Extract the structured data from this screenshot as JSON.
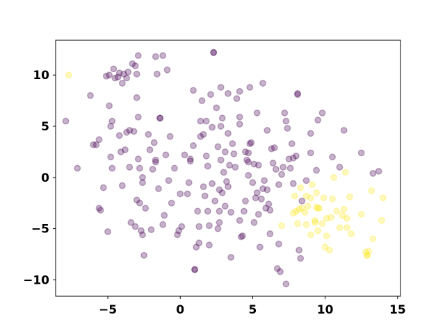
{
  "chart_data": {
    "type": "scatter",
    "title": "",
    "xlabel": "",
    "ylabel": "",
    "xlim": [
      -8.6,
      15.2
    ],
    "ylim": [
      -11.6,
      13.4
    ],
    "xticks": [
      -5,
      0,
      5,
      10,
      15
    ],
    "yticks": [
      -10,
      -5,
      0,
      5,
      10
    ],
    "xtick_labels": [
      "−5",
      "0",
      "5",
      "10",
      "15"
    ],
    "ytick_labels": [
      "−10",
      "−5",
      "0",
      "5",
      "10"
    ],
    "grid": false,
    "legend": "none",
    "marker_alpha": 0.3,
    "series": [
      {
        "color": "#440154",
        "points": [
          [
            -7.9,
            5.5
          ],
          [
            -7.1,
            0.9
          ],
          [
            -6.2,
            8.0
          ],
          [
            -6.0,
            3.2
          ],
          [
            -5.8,
            3.2
          ],
          [
            -5.6,
            3.7
          ],
          [
            -5.6,
            -3.0
          ],
          [
            -5.5,
            -3.2
          ],
          [
            -5.3,
            -1.0
          ],
          [
            -5.1,
            9.9
          ],
          [
            -5.0,
            -5.3
          ],
          [
            -4.9,
            10.0
          ],
          [
            -4.9,
            7.0
          ],
          [
            -4.8,
            5.0
          ],
          [
            -4.8,
            2.0
          ],
          [
            -4.7,
            5.5
          ],
          [
            -4.7,
            0.9
          ],
          [
            -4.6,
            10.6
          ],
          [
            -4.5,
            9.7
          ],
          [
            -4.3,
            9.8
          ],
          [
            -4.2,
            10.2
          ],
          [
            -4.2,
            4.1
          ],
          [
            -4.1,
            2.5
          ],
          [
            -4.0,
            -0.8
          ],
          [
            -4.0,
            9.2
          ],
          [
            -3.9,
            10.1
          ],
          [
            -3.8,
            2.7
          ],
          [
            -3.7,
            9.7
          ],
          [
            -3.7,
            4.4
          ],
          [
            -3.6,
            10.3
          ],
          [
            -3.5,
            4.6
          ],
          [
            -3.5,
            1.0
          ],
          [
            -3.4,
            -4.4
          ],
          [
            -3.3,
            11.1
          ],
          [
            -3.2,
            4.5
          ],
          [
            -3.1,
            10.9
          ],
          [
            -3.1,
            -4.8
          ],
          [
            -3.0,
            7.8
          ],
          [
            -3.0,
            -2.2
          ],
          [
            -3.0,
            10.1
          ],
          [
            -2.9,
            11.9
          ],
          [
            -2.9,
            5.9
          ],
          [
            -2.9,
            1.8
          ],
          [
            -2.8,
            -2.5
          ],
          [
            -2.8,
            0.9
          ],
          [
            -2.7,
            -5.2
          ],
          [
            -2.6,
            -5.6
          ],
          [
            -2.6,
            -0.5
          ],
          [
            -2.6,
            0.0
          ],
          [
            -2.5,
            -7.6
          ],
          [
            -2.4,
            -3.0
          ],
          [
            -2.2,
            4.2
          ],
          [
            -2.1,
            2.7
          ],
          [
            -2.0,
            -5.1
          ],
          [
            -1.9,
            0.8
          ],
          [
            -1.8,
            3.4
          ],
          [
            -1.7,
            1.7
          ],
          [
            -1.7,
            11.8
          ],
          [
            -1.7,
            1.5
          ],
          [
            -1.6,
            10.1
          ],
          [
            -1.5,
            -1.1
          ],
          [
            -1.4,
            5.8
          ],
          [
            -1.4,
            5.8
          ],
          [
            -1.2,
            -4.6
          ],
          [
            -1.2,
            11.9
          ],
          [
            -1.1,
            -3.7
          ],
          [
            -1.0,
            2.2
          ],
          [
            -0.9,
            10.5
          ],
          [
            -0.8,
            -0.3
          ],
          [
            -0.7,
            4.0
          ],
          [
            -0.6,
            -2.5
          ],
          [
            -0.4,
            0.9
          ],
          [
            -0.2,
            -5.6
          ],
          [
            -0.1,
            -5.2
          ],
          [
            0.0,
            -1.6
          ],
          [
            0.1,
            -4.8
          ],
          [
            0.3,
            2.2
          ],
          [
            0.5,
            -1.6
          ],
          [
            0.6,
            -0.5
          ],
          [
            0.7,
            1.8
          ],
          [
            0.7,
            1.6
          ],
          [
            0.9,
            3.1
          ],
          [
            0.9,
            8.5
          ],
          [
            1.0,
            -9.0
          ],
          [
            1.0,
            -9.0
          ],
          [
            1.1,
            -6.8
          ],
          [
            1.2,
            -3.3
          ],
          [
            1.3,
            -4.8
          ],
          [
            1.3,
            -6.4
          ],
          [
            1.4,
            4.0
          ],
          [
            1.4,
            5.5
          ],
          [
            1.5,
            7.5
          ],
          [
            1.6,
            -0.9
          ],
          [
            1.6,
            4.2
          ],
          [
            1.7,
            -1.8
          ],
          [
            1.8,
            2.1
          ],
          [
            1.8,
            5.5
          ],
          [
            1.9,
            1.1
          ],
          [
            1.9,
            -3.3
          ],
          [
            2.0,
            -4.7
          ],
          [
            2.0,
            -6.6
          ],
          [
            2.1,
            8.1
          ],
          [
            2.2,
            4.9
          ],
          [
            2.2,
            -0.6
          ],
          [
            2.3,
            12.2
          ],
          [
            2.3,
            12.2
          ],
          [
            2.4,
            -2.3
          ],
          [
            2.5,
            6.8
          ],
          [
            2.6,
            3.0
          ],
          [
            2.6,
            -5.0
          ],
          [
            2.7,
            -4.4
          ],
          [
            2.7,
            -3.3
          ],
          [
            2.7,
            -1.2
          ],
          [
            2.8,
            8.8
          ],
          [
            2.8,
            1.7
          ],
          [
            2.8,
            5.0
          ],
          [
            2.9,
            -1.5
          ],
          [
            2.9,
            5.8
          ],
          [
            3.0,
            0.5
          ],
          [
            3.1,
            -2.8
          ],
          [
            3.1,
            2.5
          ],
          [
            3.2,
            -0.4
          ],
          [
            3.3,
            8.2
          ],
          [
            3.3,
            4.3
          ],
          [
            3.3,
            -0.9
          ],
          [
            3.4,
            1.2
          ],
          [
            3.5,
            -7.8
          ],
          [
            3.5,
            -3.4
          ],
          [
            3.6,
            3.3
          ],
          [
            3.7,
            2.3
          ],
          [
            3.8,
            1.0
          ],
          [
            3.9,
            7.7
          ],
          [
            4.1,
            5.9
          ],
          [
            4.1,
            5.2
          ],
          [
            4.1,
            8.4
          ],
          [
            4.1,
            -4.2
          ],
          [
            4.2,
            -5.8
          ],
          [
            4.3,
            -5.7
          ],
          [
            4.4,
            -3.3
          ],
          [
            4.5,
            -2.3
          ],
          [
            4.5,
            2.5
          ],
          [
            4.6,
            1.7
          ],
          [
            4.7,
            0.2
          ],
          [
            4.7,
            2.4
          ],
          [
            4.7,
            1.5
          ],
          [
            4.8,
            8.8
          ],
          [
            4.8,
            3.3
          ],
          [
            4.9,
            3.4
          ],
          [
            5.0,
            -0.5
          ],
          [
            5.1,
            1.3
          ],
          [
            5.1,
            -4.4
          ],
          [
            5.2,
            -2.0
          ],
          [
            5.3,
            -1.5
          ],
          [
            5.3,
            6.3
          ],
          [
            5.4,
            1.2
          ],
          [
            5.4,
            -3.6
          ],
          [
            5.5,
            -6.8
          ],
          [
            5.6,
            -2.1
          ],
          [
            5.7,
            9.2
          ],
          [
            5.7,
            -1.1
          ],
          [
            5.8,
            -0.3
          ],
          [
            5.9,
            -3.0
          ],
          [
            6.0,
            4.6
          ],
          [
            6.0,
            -1.2
          ],
          [
            6.1,
            -2.6
          ],
          [
            6.2,
            -3.2
          ],
          [
            6.2,
            -5.5
          ],
          [
            6.3,
            2.8
          ],
          [
            6.4,
            1.4
          ],
          [
            6.5,
            2.9
          ],
          [
            6.6,
            0.8
          ],
          [
            6.7,
            -8.9
          ],
          [
            6.8,
            -0.7
          ],
          [
            6.8,
            -6.5
          ],
          [
            6.9,
            -9.2
          ],
          [
            7.0,
            0.3
          ],
          [
            7.1,
            1.0
          ],
          [
            7.2,
            6.3
          ],
          [
            7.3,
            -10.4
          ],
          [
            7.3,
            5.5
          ],
          [
            7.4,
            4.8
          ],
          [
            7.5,
            1.8
          ],
          [
            7.6,
            0.9
          ],
          [
            7.7,
            3.3
          ],
          [
            7.8,
            1.9
          ],
          [
            7.8,
            -0.6
          ],
          [
            8.0,
            2.1
          ],
          [
            8.1,
            8.2
          ],
          [
            8.1,
            8.1
          ],
          [
            8.2,
            -7.1
          ],
          [
            8.3,
            -7.9
          ],
          [
            8.4,
            -2.3
          ],
          [
            8.7,
            -0.3
          ],
          [
            9.0,
            2.4
          ],
          [
            9.0,
            4.3
          ],
          [
            9.4,
            0.7
          ],
          [
            9.5,
            5.6
          ],
          [
            9.8,
            6.3
          ],
          [
            10.5,
            2.0
          ],
          [
            11.0,
            1.0
          ],
          [
            11.3,
            4.6
          ],
          [
            12.5,
            2.4
          ],
          [
            13.3,
            0.4
          ],
          [
            13.7,
            0.6
          ]
        ]
      },
      {
        "color": "#fde725",
        "points": [
          [
            -7.7,
            10.0
          ],
          [
            7.0,
            -4.7
          ],
          [
            7.8,
            -3.5
          ],
          [
            7.9,
            -1.8
          ],
          [
            8.0,
            -3.3
          ],
          [
            8.1,
            -4.5
          ],
          [
            8.2,
            -3.1
          ],
          [
            8.3,
            -1.0
          ],
          [
            8.4,
            -3.0
          ],
          [
            8.6,
            -3.4
          ],
          [
            8.7,
            -4.6
          ],
          [
            8.7,
            -1.8
          ],
          [
            8.8,
            -2.8
          ],
          [
            9.0,
            -5.6
          ],
          [
            9.0,
            -2.0
          ],
          [
            9.1,
            -0.7
          ],
          [
            9.3,
            -4.4
          ],
          [
            9.3,
            -4.2
          ],
          [
            9.4,
            -1.5
          ],
          [
            9.4,
            -2.9
          ],
          [
            9.5,
            -3.0
          ],
          [
            9.5,
            -5.2
          ],
          [
            9.6,
            -3.0
          ],
          [
            9.8,
            -4.5
          ],
          [
            9.9,
            -2.0
          ],
          [
            10.0,
            -6.8
          ],
          [
            10.1,
            -5.7
          ],
          [
            10.1,
            -4.0
          ],
          [
            10.3,
            -7.1
          ],
          [
            10.4,
            -3.9
          ],
          [
            10.5,
            -2.1
          ],
          [
            10.6,
            0.0
          ],
          [
            10.8,
            -3.3
          ],
          [
            11.0,
            -4.9
          ],
          [
            11.2,
            -3.7
          ],
          [
            11.3,
            -3.1
          ],
          [
            11.4,
            0.5
          ],
          [
            11.5,
            -4.0
          ],
          [
            11.5,
            -4.9
          ],
          [
            11.7,
            -1.9
          ],
          [
            11.8,
            -5.5
          ],
          [
            12.5,
            -3.6
          ],
          [
            12.8,
            -7.3
          ],
          [
            12.9,
            -7.6
          ],
          [
            12.9,
            -7.6
          ],
          [
            13.0,
            -7.2
          ],
          [
            13.2,
            -1.3
          ],
          [
            13.3,
            -6.0
          ],
          [
            13.9,
            -4.2
          ],
          [
            14.0,
            -2.0
          ]
        ]
      }
    ]
  }
}
